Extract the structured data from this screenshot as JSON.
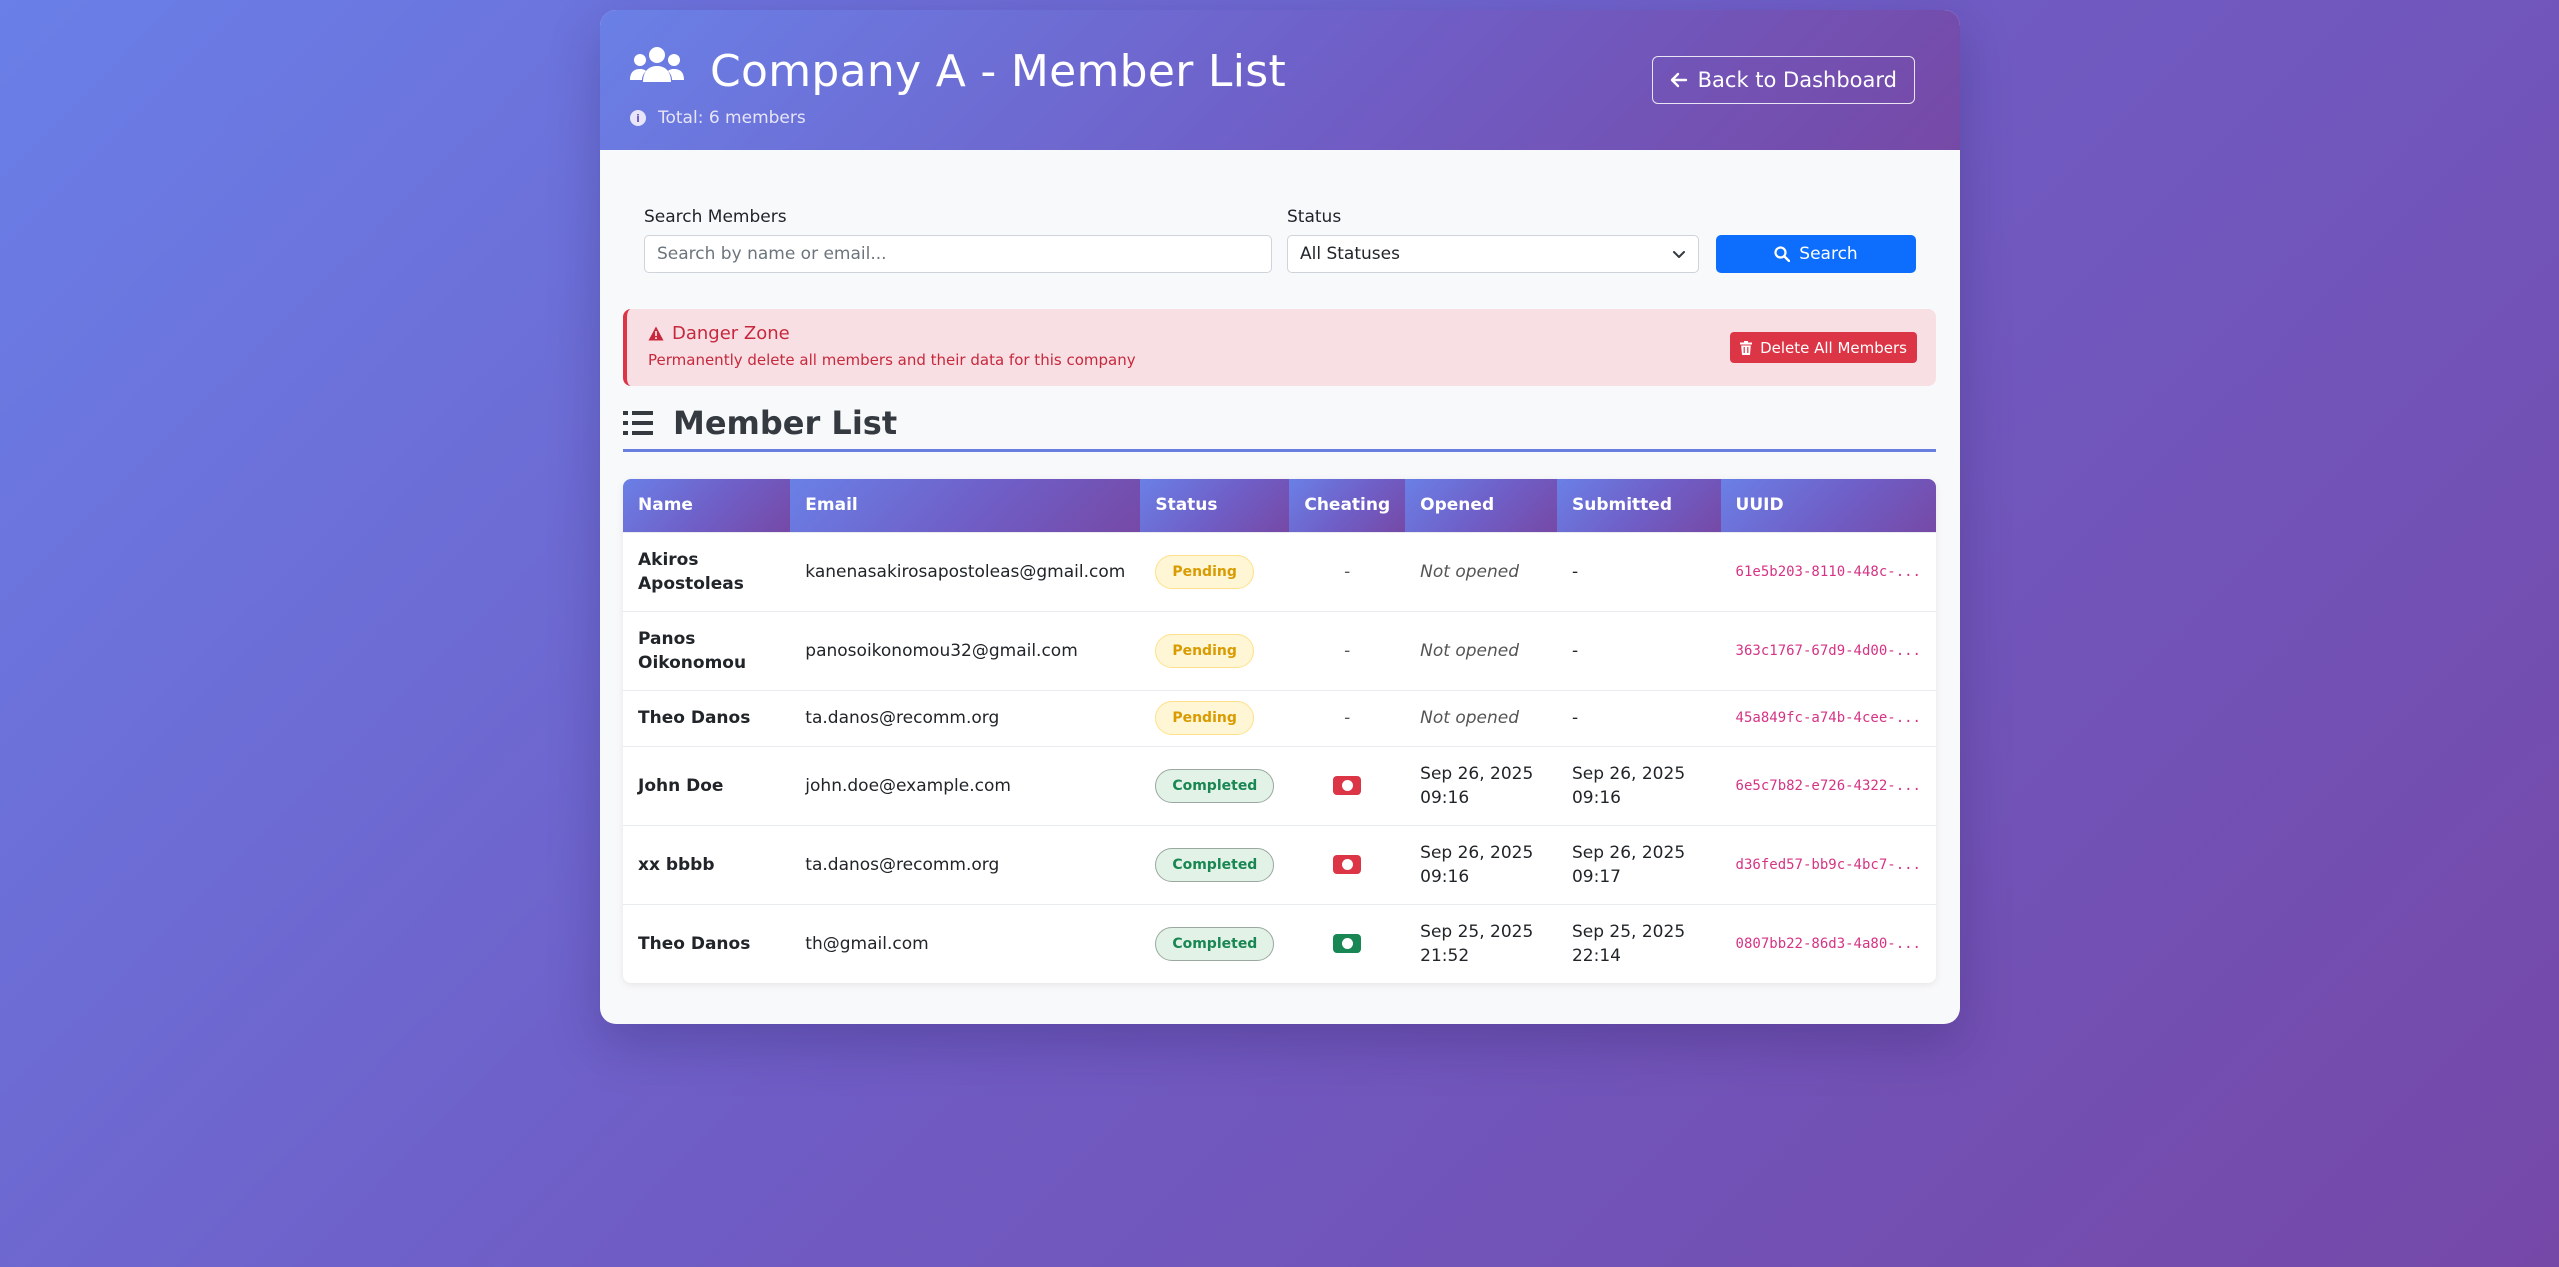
{
  "header": {
    "title": "Company A - Member List",
    "total": "Total: 6 members",
    "back_label": "Back to Dashboard"
  },
  "filters": {
    "search_label": "Search Members",
    "search_placeholder": "Search by name or email...",
    "status_label": "Status",
    "status_value": "All Statuses",
    "search_button": "Search"
  },
  "danger": {
    "title": "Danger Zone",
    "description": "Permanently delete all members and their data for this company",
    "button": "Delete All Members"
  },
  "section": {
    "title": "Member List"
  },
  "table": {
    "columns": [
      "Name",
      "Email",
      "Status",
      "Cheating",
      "Opened",
      "Submitted",
      "UUID"
    ],
    "rows": [
      {
        "name": "Akiros Apostoleas",
        "email": "kanenasakirosapostoleas@gmail.com",
        "status": "Pending",
        "cheating": "-",
        "opened": "Not opened",
        "submitted": "-",
        "uuid": "61e5b203-8110-448c-..."
      },
      {
        "name": "Panos Oikonomou",
        "email": "panosoikonomou32@gmail.com",
        "status": "Pending",
        "cheating": "-",
        "opened": "Not opened",
        "submitted": "-",
        "uuid": "363c1767-67d9-4d00-..."
      },
      {
        "name": "Theo Danos",
        "email": "ta.danos@recomm.org",
        "status": "Pending",
        "cheating": "-",
        "opened": "Not opened",
        "submitted": "-",
        "uuid": "45a849fc-a74b-4cee-..."
      },
      {
        "name": "John Doe",
        "email": "john.doe@example.com",
        "status": "Completed",
        "cheating": "red-record-icon",
        "opened": "Sep 26, 2025 09:16",
        "submitted": "Sep 26, 2025 09:16",
        "uuid": "6e5c7b82-e726-4322-..."
      },
      {
        "name": "xx bbbb",
        "email": "ta.danos@recomm.org",
        "status": "Completed",
        "cheating": "red-record-icon",
        "opened": "Sep 26, 2025 09:16",
        "submitted": "Sep 26, 2025 09:17",
        "uuid": "d36fed57-bb9c-4bc7-..."
      },
      {
        "name": "Theo Danos",
        "email": "th@gmail.com",
        "status": "Completed",
        "cheating": "green-record-icon",
        "opened": "Sep 25, 2025 21:52",
        "submitted": "Sep 25, 2025 22:14",
        "uuid": "0807bb22-86d3-4a80-..."
      }
    ]
  },
  "colors": {
    "primary": "#0d6efd",
    "danger": "#dc3545",
    "success": "#198754",
    "pending": "#d99b00",
    "uuid": "#d63384"
  }
}
